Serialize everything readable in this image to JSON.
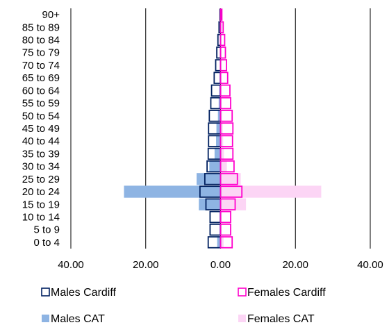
{
  "chart_data": {
    "type": "bar",
    "orientation": "horizontal-population-pyramid",
    "categories": [
      "0 to 4",
      "5 to 9",
      "10 to 14",
      "15 to 19",
      "20 to 24",
      "25 to 29",
      "30 to 34",
      "35 to 39",
      "40 to 44",
      "45 to 49",
      "50 to 54",
      "55 to 59",
      "60 to 64",
      "65 to 69",
      "70 to 74",
      "75 to 79",
      "80 to 84",
      "85 to 89",
      "90+"
    ],
    "series": [
      {
        "name": "Males CAT",
        "side": "left",
        "style": "filled",
        "color": "#8eb4e3",
        "values": [
          0.9,
          0.3,
          0.3,
          5.8,
          25.8,
          6.4,
          3.0,
          1.6,
          1.2,
          1.1,
          0.7,
          0.5,
          0.4,
          0.3,
          0.2,
          0.1,
          0.05,
          0.03,
          0.02
        ]
      },
      {
        "name": "Females CAT",
        "side": "right",
        "style": "filled",
        "color": "#fcd5f5",
        "values": [
          0.8,
          0.3,
          0.3,
          6.8,
          26.9,
          5.4,
          1.7,
          0.9,
          0.7,
          0.6,
          0.4,
          0.3,
          0.2,
          0.1,
          0.1,
          0.05,
          0.03,
          0.02,
          0.01
        ]
      },
      {
        "name": "Males Cardiff",
        "side": "left",
        "style": "outline",
        "color": "#002060",
        "values": [
          3.3,
          2.8,
          2.8,
          3.9,
          5.5,
          4.2,
          3.6,
          3.3,
          3.2,
          3.2,
          3.0,
          2.6,
          2.4,
          1.7,
          1.3,
          1.0,
          0.7,
          0.4,
          0.15
        ]
      },
      {
        "name": "Females Cardiff",
        "side": "right",
        "style": "outline",
        "color": "#ff00cc",
        "values": [
          3.1,
          2.7,
          2.7,
          3.9,
          5.7,
          4.5,
          3.6,
          3.3,
          3.2,
          3.3,
          3.1,
          2.7,
          2.5,
          1.9,
          1.6,
          1.3,
          1.1,
          0.7,
          0.35
        ]
      }
    ],
    "x_tick_labels": [
      "40.00",
      "20.00",
      "0.00",
      "20.00",
      "40.00"
    ],
    "xlim": [
      -40,
      40
    ],
    "gridlines": "vertical",
    "legend_position": "bottom"
  },
  "legend": {
    "males_cardiff": "Males Cardiff",
    "females_cardiff": "Females Cardiff",
    "males_cat": "Males CAT",
    "females_cat": "Females CAT"
  }
}
